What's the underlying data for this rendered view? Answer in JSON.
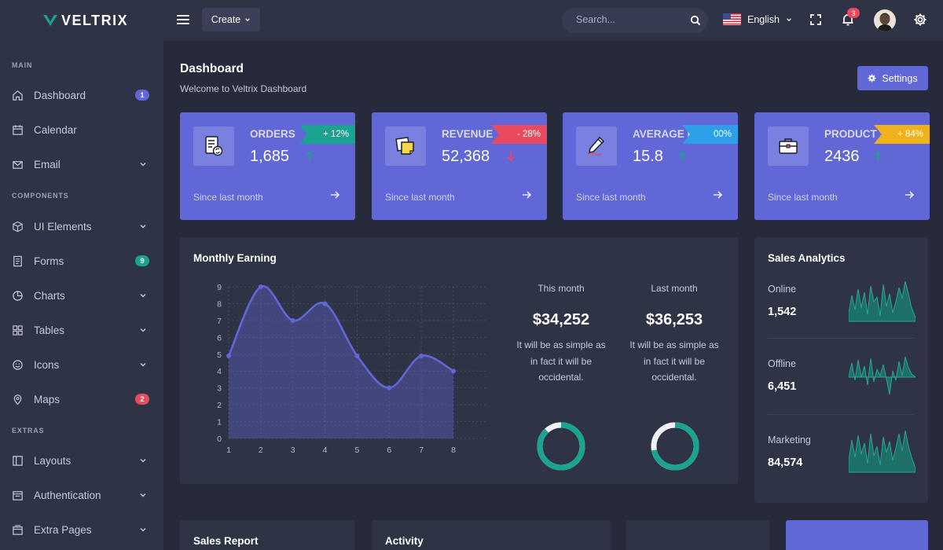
{
  "app": {
    "name": "VELTRIX"
  },
  "sidebar": {
    "sections": {
      "main": "MAIN",
      "components": "COMPONENTS",
      "extras": "EXTRAS"
    },
    "items": [
      {
        "label": "Dashboard",
        "icon": "home-icon",
        "badge": "1",
        "badge_color": "#6167d6"
      },
      {
        "label": "Calendar",
        "icon": "calendar-icon"
      },
      {
        "label": "Email",
        "icon": "mail-icon"
      },
      {
        "label": "UI Elements",
        "icon": "cube-icon"
      },
      {
        "label": "Forms",
        "icon": "form-icon",
        "badge": "9",
        "badge_color": "#1aa391"
      },
      {
        "label": "Charts",
        "icon": "pie-chart-icon"
      },
      {
        "label": "Tables",
        "icon": "grid-icon"
      },
      {
        "label": "Icons",
        "icon": "smile-icon"
      },
      {
        "label": "Maps",
        "icon": "map-pin-icon",
        "badge": "2",
        "badge_color": "#e94a5f"
      },
      {
        "label": "Layouts",
        "icon": "layout-icon"
      },
      {
        "label": "Authentication",
        "icon": "lock-icon"
      },
      {
        "label": "Extra Pages",
        "icon": "pages-icon"
      }
    ]
  },
  "topbar": {
    "create_label": "Create",
    "search_placeholder": "Search...",
    "language": "English",
    "notification_count": "3"
  },
  "page": {
    "title": "Dashboard",
    "subtitle": "Welcome to Veltrix Dashboard",
    "settings_label": "Settings"
  },
  "stats": [
    {
      "label": "ORDERS",
      "value": "1,685",
      "badge": "+ 12%",
      "badge_color": "#1aa391",
      "trend": "up",
      "since": "Since last month"
    },
    {
      "label": "REVENUE",
      "value": "52,368",
      "badge": "- 28%",
      "badge_color": "#e94a5f",
      "trend": "down",
      "since": "Since last month"
    },
    {
      "label": "AVERAGE PRICE",
      "value": "15.8",
      "badge": "00%",
      "badge_color": "#2d9ee8",
      "trend": "up",
      "since": "Since last month"
    },
    {
      "label": "PRODUCT SOLD",
      "value": "2436",
      "badge": "+ 84%",
      "badge_color": "#f0b21b",
      "trend": "up",
      "since": "Since last month"
    }
  ],
  "monthly_earning": {
    "title": "Monthly Earning",
    "this_month": {
      "label": "This month",
      "value": "$34,252",
      "desc_lines": [
        "It will be as simple as",
        "in fact it will be",
        "occidental."
      ],
      "progress": 0.88
    },
    "last_month": {
      "label": "Last month",
      "value": "$36,253",
      "desc_lines": [
        "It will be as simple as",
        "in fact it will be",
        "occidental."
      ],
      "progress": 0.72
    }
  },
  "chart_data": {
    "type": "area",
    "x": [
      1,
      2,
      3,
      4,
      5,
      6,
      7,
      8
    ],
    "values": [
      4.9,
      9,
      7,
      8,
      4.9,
      3,
      4.9,
      4
    ],
    "xlim": [
      1,
      8
    ],
    "ylim": [
      0,
      9
    ],
    "yticks": [
      0,
      1,
      2,
      3,
      4,
      5,
      6,
      7,
      8,
      9
    ],
    "grid": true,
    "color": "#6167d6"
  },
  "sales_analytics": {
    "title": "Sales Analytics",
    "rows": [
      {
        "label": "Online",
        "value": "1,542"
      },
      {
        "label": "Offline",
        "value": "6,451"
      },
      {
        "label": "Marketing",
        "value": "84,574"
      }
    ]
  },
  "bottom": {
    "sales_report": "Sales Report",
    "activity": "Activity"
  },
  "colors": {
    "accent": "#6167d6",
    "teal": "#1aa391",
    "danger": "#e94a5f",
    "sidebar": "#2f3346",
    "bg": "#262a3b"
  }
}
